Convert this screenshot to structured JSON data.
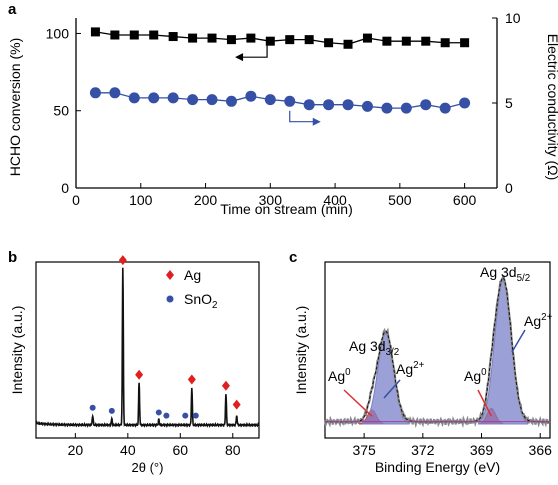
{
  "panels": {
    "a": {
      "letter": "a"
    },
    "b": {
      "letter": "b"
    },
    "c": {
      "letter": "c"
    }
  },
  "chart_data": [
    {
      "panel": "a",
      "type": "scatter",
      "xlabel": "Time on stream (min)",
      "ylabel_left": "HCHO conversion (%)",
      "ylabel_right": "Electric conductivity (Ω)",
      "xlim": [
        0,
        650
      ],
      "ylim_left": [
        0,
        110
      ],
      "ylim_right": [
        0,
        10
      ],
      "x_ticks": [
        0,
        100,
        200,
        300,
        400,
        500,
        600
      ],
      "y_ticks_left": [
        0,
        50,
        100
      ],
      "y_ticks_right": [
        0,
        5,
        10
      ],
      "series": [
        {
          "axis": "left",
          "marker": "square",
          "color": "#000000",
          "x": [
            30,
            60,
            90,
            120,
            150,
            180,
            210,
            240,
            270,
            300,
            330,
            360,
            390,
            420,
            450,
            480,
            510,
            540,
            570,
            600
          ],
          "y": [
            101,
            99,
            99,
            99,
            98,
            97,
            97,
            96,
            97,
            95,
            96,
            96,
            94,
            93,
            97,
            95,
            95,
            95,
            94,
            94
          ]
        },
        {
          "axis": "right",
          "marker": "circle",
          "color": "#3550a5",
          "x": [
            30,
            60,
            90,
            120,
            150,
            180,
            210,
            240,
            270,
            300,
            330,
            360,
            390,
            420,
            450,
            480,
            510,
            540,
            570,
            600
          ],
          "y": [
            5.6,
            5.6,
            5.3,
            5.3,
            5.3,
            5.2,
            5.2,
            5.1,
            5.4,
            5.2,
            5.1,
            4.9,
            4.9,
            4.9,
            4.8,
            4.7,
            4.7,
            4.9,
            4.7,
            5.0
          ]
        }
      ]
    },
    {
      "panel": "b",
      "type": "line",
      "xlabel": "2θ (°)",
      "ylabel": "Intensity (a.u.)",
      "xlim": [
        5,
        90
      ],
      "x_ticks": [
        20,
        40,
        60,
        80
      ],
      "legend": [
        {
          "label": "Ag",
          "marker": "diamond",
          "color": "#e02020"
        },
        {
          "label": "SnO",
          "sub": "2",
          "marker": "circle",
          "color": "#3550a5"
        }
      ],
      "peaks": [
        {
          "x": 26.6,
          "h": 0.06
        },
        {
          "x": 33.9,
          "h": 0.04
        },
        {
          "x": 38.1,
          "h": 1.0
        },
        {
          "x": 44.3,
          "h": 0.27
        },
        {
          "x": 51.8,
          "h": 0.035
        },
        {
          "x": 64.4,
          "h": 0.24
        },
        {
          "x": 77.4,
          "h": 0.2
        },
        {
          "x": 81.5,
          "h": 0.06
        }
      ],
      "markers_ag": [
        {
          "x": 38.1,
          "y": 1.05
        },
        {
          "x": 44.3,
          "y": 0.32
        },
        {
          "x": 64.4,
          "y": 0.29
        },
        {
          "x": 77.4,
          "y": 0.25
        },
        {
          "x": 81.5,
          "y": 0.13
        }
      ],
      "markers_sno2": [
        {
          "x": 26.6,
          "y": 0.11
        },
        {
          "x": 33.9,
          "y": 0.09
        },
        {
          "x": 51.8,
          "y": 0.08
        },
        {
          "x": 54.7,
          "y": 0.06
        },
        {
          "x": 61.9,
          "y": 0.06
        },
        {
          "x": 65.9,
          "y": 0.06
        }
      ]
    },
    {
      "panel": "c",
      "type": "line",
      "xlabel": "Binding Energy (eV)",
      "ylabel": "Intensity (a.u.)",
      "xlim": [
        377,
        365.5
      ],
      "x_ticks": [
        375,
        372,
        369,
        366
      ],
      "peaks": [
        {
          "name": "Ag 3d3/2 Ag0",
          "center": 374.6,
          "sigma": 0.22,
          "h": 0.09,
          "color": "#e03030"
        },
        {
          "name": "Ag 3d3/2 Ag2+",
          "center": 373.9,
          "sigma": 0.4,
          "h": 0.58,
          "color": "#7a80c8"
        },
        {
          "name": "Ag 3d5/2 Ag0",
          "center": 368.5,
          "sigma": 0.22,
          "h": 0.1,
          "color": "#e03030"
        },
        {
          "name": "Ag 3d5/2 Ag2+",
          "center": 367.9,
          "sigma": 0.42,
          "h": 0.92,
          "color": "#7a80c8"
        }
      ],
      "annotations": [
        {
          "text": "Ag 3d",
          "sub": "3/2"
        },
        {
          "text": "Ag 3d",
          "sub": "5/2"
        },
        {
          "text": "Ag",
          "sup": "0"
        },
        {
          "text": "Ag",
          "sup": "2+"
        },
        {
          "text": "Ag",
          "sup": "0"
        },
        {
          "text": "Ag",
          "sup": "2+"
        }
      ]
    }
  ]
}
